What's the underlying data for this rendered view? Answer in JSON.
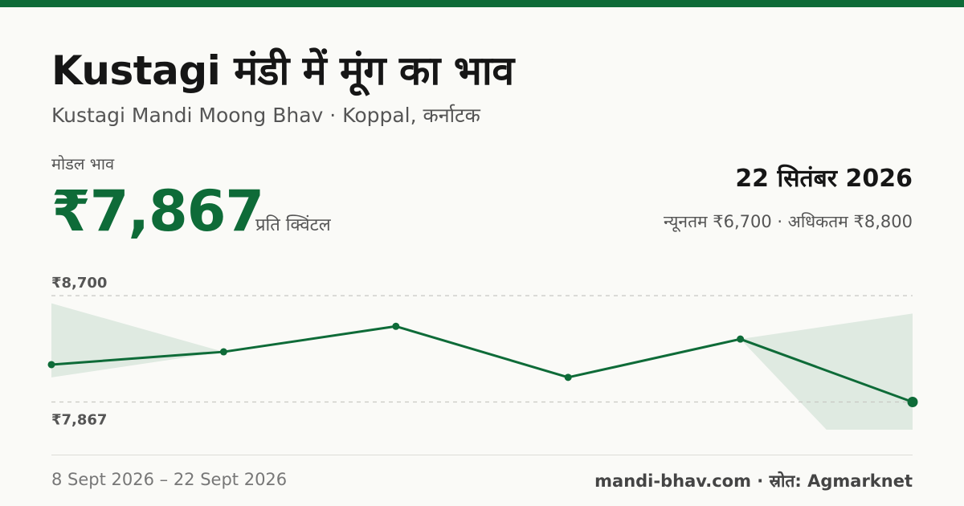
{
  "header": {
    "title": "Kustagi मंडी में मूंग का भाव",
    "subtitle": "Kustagi Mandi Moong Bhav · Koppal, कर्नाटक"
  },
  "price": {
    "label": "मोडल भाव",
    "value": "₹7,867",
    "unit": "प्रति क्विंटल"
  },
  "summary": {
    "date": "22 सितंबर 2026",
    "range_text": "न्यूनतम ₹6,700 · अधिकतम ₹8,800"
  },
  "chart_data": {
    "type": "line",
    "title": "",
    "xlabel": "",
    "ylabel": "",
    "y_reference_labels": [
      "₹8,700",
      "₹7,867"
    ],
    "y_reference_values": [
      8700,
      7867
    ],
    "ylim": [
      7650,
      8940
    ],
    "x_start_label": "8 Sept 2026",
    "x_end_label": "22 Sept 2026",
    "series": [
      {
        "x": [
          "8 Sept 2026",
          "10 Sept 2026",
          "13 Sept 2026",
          "16 Sept 2026",
          "19 Sept 2026",
          "22 Sept 2026"
        ],
        "values": [
          8160,
          8260,
          8460,
          8060,
          8360,
          7867
        ]
      }
    ],
    "band": {
      "upper": [
        8640,
        null,
        null,
        null,
        null,
        8560
      ],
      "lower": [
        8060,
        null,
        null,
        null,
        null,
        7650
      ]
    },
    "colors": {
      "line": "#0e6b38",
      "band": "#d9e6dd",
      "grid": "#c8c8c4"
    }
  },
  "footer": {
    "date_range": "8 Sept 2026 – 22 Sept 2026",
    "site": "mandi-bhav.com",
    "source": "स्रोत: Agmarknet"
  }
}
